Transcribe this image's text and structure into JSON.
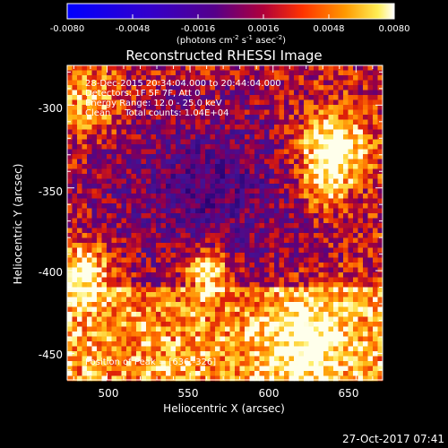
{
  "colorbar": {
    "ticks": [
      "-0.0080",
      "-0.0048",
      "-0.0016",
      "0.0016",
      "0.0048",
      "0.0080"
    ],
    "units_pre": "(photons cm",
    "units_exp1": "-2",
    "units_mid": " s",
    "units_exp2": "-1",
    "units_mid2": " asec",
    "units_exp3": "-2",
    "units_post": ")"
  },
  "title": "Reconstructed RHESSI Image",
  "info": {
    "line1": "28-Dec-2015 20:34:04.000 to 20:44:04.000",
    "line2": "Detectors: 1F 5F 7F, Att 0",
    "line3": "Energy Range: 12.0 - 25.0 keV",
    "line4": "Clean     Total counts: 1.04E+04"
  },
  "peak_label": "Position of Peak = [636,-326]",
  "timestamp": "27-Oct-2017 07:41",
  "chart_data": {
    "type": "heatmap",
    "title": "Reconstructed RHESSI Image",
    "xlabel": "Heliocentric X (arcsec)",
    "ylabel": "Heliocentric Y (arcsec)",
    "xlim": [
      476,
      666
    ],
    "ylim": [
      -466,
      -276
    ],
    "xticks": [
      "500",
      "550",
      "600",
      "650"
    ],
    "yticks": [
      "-300",
      "-350",
      "-400",
      "-450"
    ],
    "colorbar_range": [
      -0.008,
      0.008
    ],
    "peak": [
      636,
      -326
    ],
    "hotspots": [
      {
        "x": 636,
        "y": -326
      },
      {
        "x": 560,
        "y": -400
      },
      {
        "x": 485,
        "y": -400
      },
      {
        "x": 490,
        "y": -300
      }
    ]
  }
}
